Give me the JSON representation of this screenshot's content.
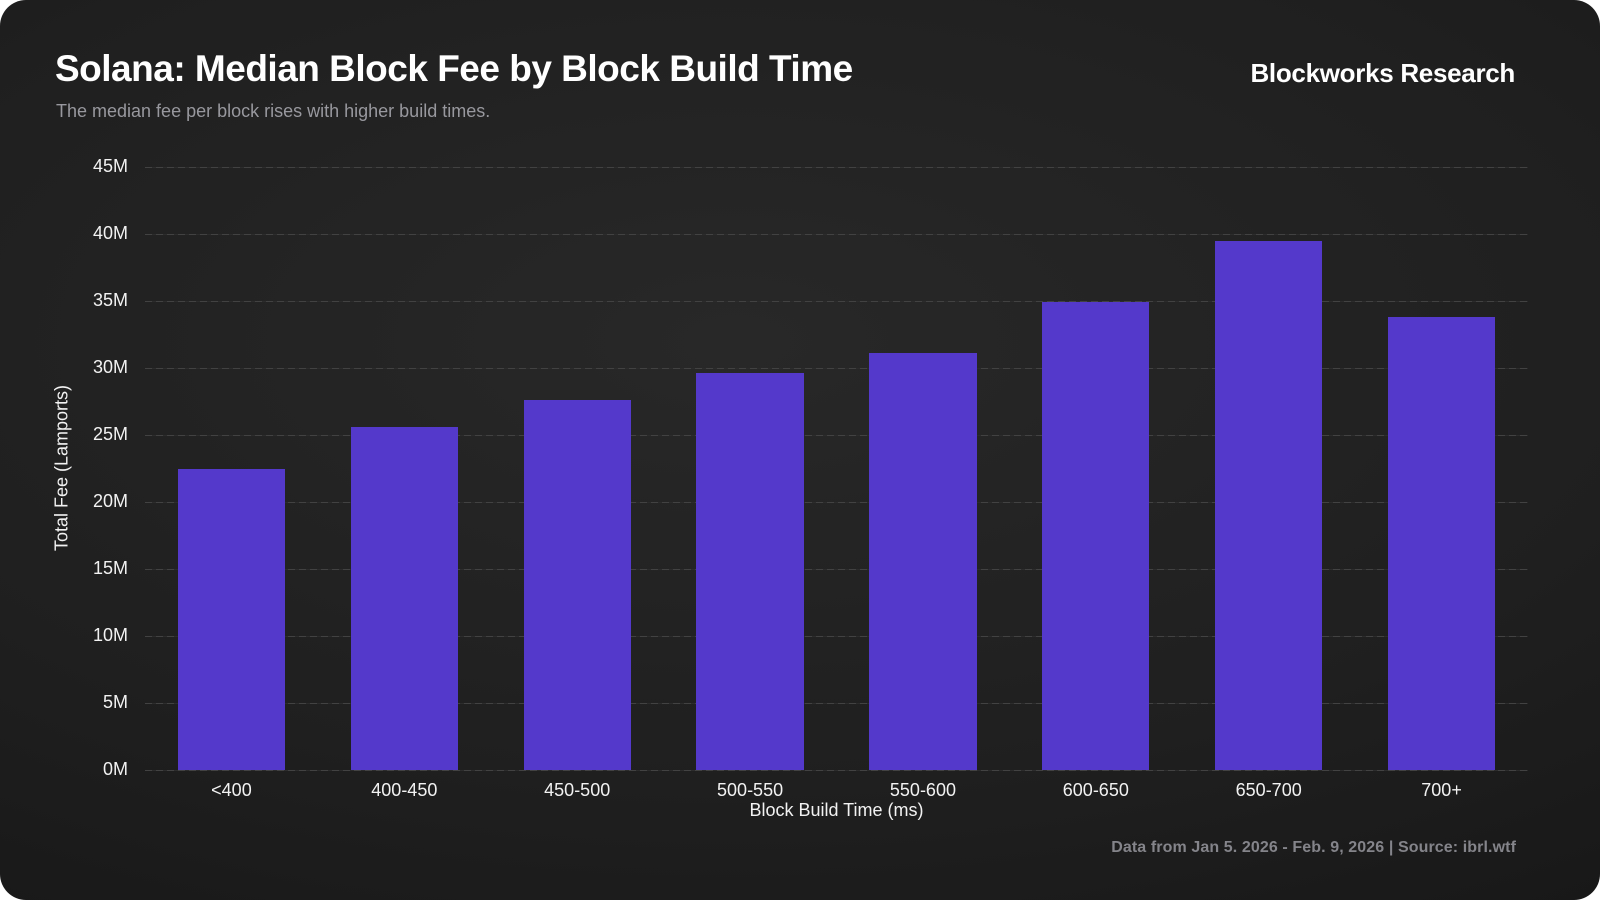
{
  "header": {
    "title": "Solana: Median Block Fee by Block Build Time",
    "subtitle": "The median fee per block rises with higher build times.",
    "brand": "Blockworks Research"
  },
  "footer": {
    "note": "Data from Jan 5. 2026 - Feb. 9, 2026 | Source: ibrl.wtf"
  },
  "chart_data": {
    "type": "bar",
    "title": "Solana: Median Block Fee by Block Build Time",
    "categories": [
      "<400",
      "400-450",
      "450-500",
      "500-550",
      "550-600",
      "600-650",
      "650-700",
      "700+"
    ],
    "values": [
      22.5,
      25.6,
      27.6,
      29.6,
      31.1,
      34.9,
      39.5,
      33.8
    ],
    "values_unit": "M",
    "xlabel": "Block Build Time (ms)",
    "ylabel": "Total Fee (Lamports)",
    "ylim": [
      0,
      45
    ],
    "ytick_step": 5,
    "ytick_labels": [
      "0M",
      "5M",
      "10M",
      "15M",
      "20M",
      "25M",
      "30M",
      "35M",
      "40M",
      "45M"
    ],
    "grid": true,
    "legend": false,
    "bar_color": "#5439CB",
    "background_color": "#1f1f1f",
    "grid_color": "#3e3e3e",
    "tick_color": "#f2f2f2"
  }
}
